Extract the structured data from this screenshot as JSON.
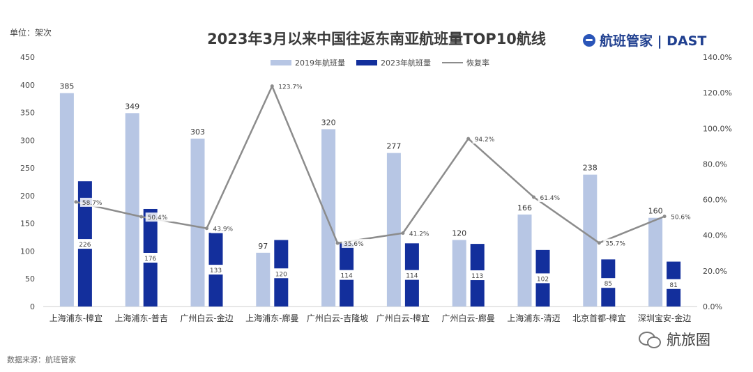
{
  "page": {
    "unit": "单位：架次",
    "title": "2023年3月以来中国往返东南亚航班量TOP10航线",
    "brand": "航班管家 | DAST",
    "source": "数据来源：航班管家",
    "watermark": "航旅圈"
  },
  "colors": {
    "series_2019": "#b7c6e4",
    "series_2023": "#132f9c",
    "recovery_line": "#8c8c8c"
  },
  "chart_data": {
    "type": "bar",
    "categories": [
      "上海浦东-樟宜",
      "上海浦东-普吉",
      "广州白云-金边",
      "上海浦东-廊曼",
      "广州白云-吉隆坡",
      "广州白云-樟宜",
      "广州白云-廊曼",
      "上海浦东-清迈",
      "北京首都-樟宜",
      "深圳宝安-金边"
    ],
    "series": [
      {
        "name": "2019年航班量",
        "kind": "bar",
        "axis": "left",
        "values": [
          385,
          349,
          303,
          97,
          320,
          277,
          120,
          166,
          238,
          160
        ]
      },
      {
        "name": "2023年航班量",
        "kind": "bar",
        "axis": "left",
        "values": [
          226,
          176,
          133,
          120,
          114,
          114,
          113,
          102,
          85,
          81
        ]
      },
      {
        "name": "恢复率",
        "kind": "line",
        "axis": "right",
        "values": [
          58.7,
          50.4,
          43.9,
          123.7,
          35.6,
          41.2,
          94.2,
          61.4,
          35.7,
          50.6
        ]
      }
    ],
    "data_labels": {
      "2019": [
        "385",
        "349",
        "303",
        "97",
        "320",
        "277",
        "120",
        "166",
        "238",
        "160"
      ],
      "2023": [
        "226",
        "176",
        "133",
        "120",
        "114",
        "114",
        "113",
        "102",
        "85",
        "81"
      ],
      "recovery": [
        "58.7%",
        "50.4%",
        "43.9%",
        "123.7%",
        "35.6%",
        "41.2%",
        "94.2%",
        "61.4%",
        "35.7%",
        "50.6%"
      ]
    },
    "y_left": {
      "min": 0,
      "max": 450,
      "ticks": [
        0,
        50,
        100,
        150,
        200,
        250,
        300,
        350,
        400,
        450
      ],
      "tick_labels": [
        "0",
        "50",
        "100",
        "150",
        "200",
        "250",
        "300",
        "350",
        "400",
        "450"
      ]
    },
    "y_right": {
      "min": 0,
      "max": 140,
      "ticks": [
        0,
        20,
        40,
        60,
        80,
        100,
        120,
        140
      ],
      "tick_labels": [
        "0.0%",
        "20.0%",
        "40.0%",
        "60.0%",
        "80.0%",
        "100.0%",
        "120.0%",
        "140.0%"
      ]
    },
    "legend_position": "top-center",
    "grid": false
  }
}
